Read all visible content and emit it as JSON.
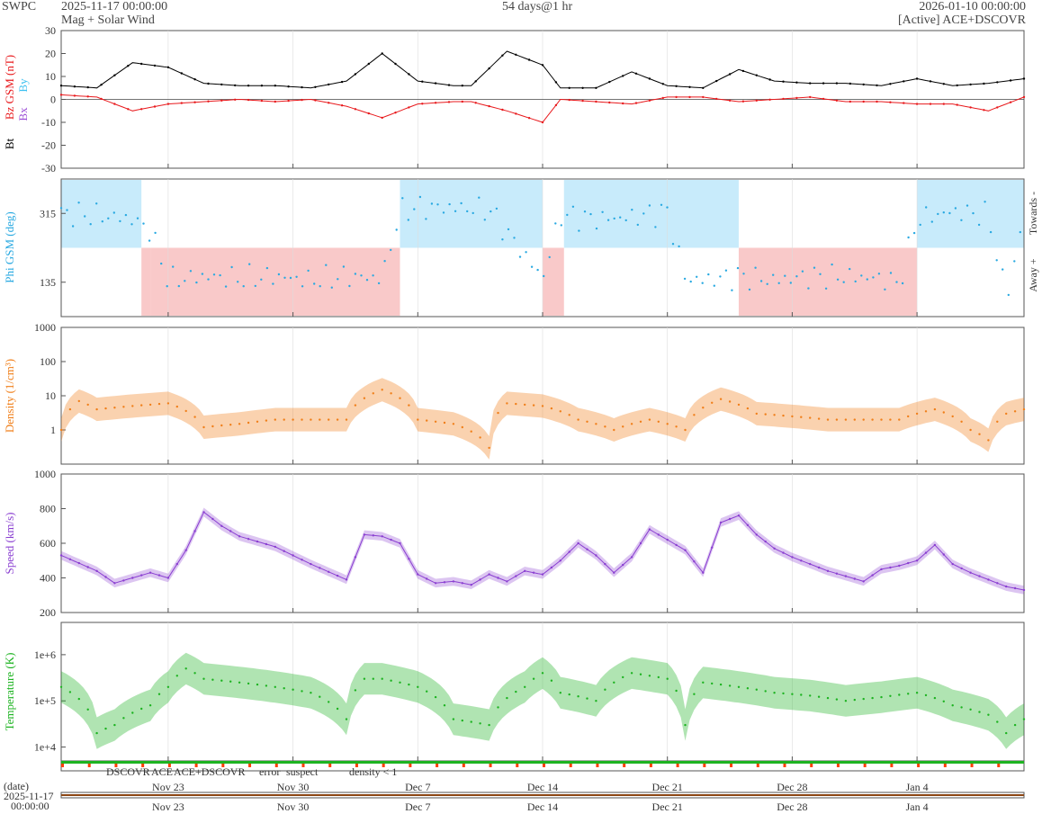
{
  "header": {
    "logo": "SWPC",
    "start": "2025-11-17 00:00:00",
    "subtitle": "Mag + Solar Wind",
    "span": "54 days@1 hr",
    "end": "2026-01-10 00:00:00",
    "source": "[Active] ACE+DSCOVR"
  },
  "x_labels": [
    "Nov 23",
    "Nov 30",
    "Dec 7",
    "Dec 14",
    "Dec 21",
    "Dec 28",
    "Jan 4"
  ],
  "footer": {
    "date_label": "(date)",
    "date_start": "2025-11-17",
    "time_start": "00:00:00"
  },
  "legend": {
    "dscovr": "DSCOVR",
    "ace": "ACE",
    "ace_dscovr": "ACE+DSCOVR",
    "error": "error",
    "suspect": "suspect",
    "density": "density < 1"
  },
  "colors": {
    "bt": "#000000",
    "bz": "#e8191c",
    "by": "#3ec1f0",
    "bx": "#9b4dd6",
    "phi": "#29a9e1",
    "toward_fill": "#c8ebfb",
    "away_fill": "#f9c9c9",
    "density": "#f07f1a",
    "speed": "#8a3fd1",
    "temperature": "#1db321"
  },
  "chart_data": [
    {
      "type": "line",
      "name": "Mag",
      "ylabel_parts": [
        "Bt",
        "Bz GSM (nT)",
        "Bx",
        "By"
      ],
      "ylim": [
        -30,
        30
      ],
      "yticks": [
        30,
        20,
        10,
        0,
        -10,
        -20,
        -30
      ],
      "x_unit": "days since 2025-11-17",
      "series": [
        {
          "name": "Bt",
          "x": [
            0,
            2,
            4,
            6,
            8,
            10,
            12,
            14,
            16,
            18,
            20,
            22,
            23,
            25,
            27,
            28,
            30,
            32,
            34,
            36,
            38,
            40,
            42,
            44,
            46,
            48,
            50,
            52,
            54
          ],
          "y": [
            6,
            5,
            16,
            14,
            7,
            6,
            6,
            5,
            8,
            20,
            8,
            6,
            6,
            21,
            15,
            5,
            5,
            12,
            6,
            5,
            13,
            8,
            7,
            7,
            6,
            9,
            6,
            7,
            9
          ]
        },
        {
          "name": "Bz GSM",
          "x": [
            0,
            2,
            4,
            6,
            8,
            10,
            12,
            14,
            16,
            18,
            20,
            22,
            23,
            25,
            27,
            28,
            30,
            32,
            34,
            36,
            38,
            40,
            42,
            44,
            46,
            48,
            50,
            52,
            54
          ],
          "y": [
            2,
            1,
            -5,
            -2,
            -1,
            0,
            -1,
            0,
            -3,
            -8,
            -2,
            -1,
            -1,
            -5,
            -10,
            0,
            -1,
            -2,
            1,
            1,
            -1,
            0,
            1,
            -1,
            -1,
            -2,
            -2,
            -5,
            1
          ]
        }
      ]
    },
    {
      "type": "scatter",
      "name": "Phi GSM",
      "ylabel": "Phi GSM (deg)",
      "yticks": [
        315,
        135
      ],
      "ylim": [
        45,
        405
      ],
      "side_labels": {
        "top": "Towards -",
        "bottom": "Away +"
      },
      "x": [
        0,
        2,
        4,
        5,
        6,
        8,
        10,
        12,
        14,
        16,
        18,
        19,
        20,
        22,
        24,
        27,
        28,
        30,
        32,
        34,
        35,
        36,
        38,
        40,
        42,
        44,
        46,
        47,
        48,
        50,
        52,
        53,
        54
      ],
      "y": [
        315,
        310,
        300,
        270,
        140,
        150,
        145,
        150,
        140,
        150,
        145,
        320,
        330,
        330,
        325,
        145,
        310,
        300,
        305,
        320,
        145,
        140,
        150,
        140,
        150,
        150,
        145,
        130,
        300,
        320,
        310,
        95,
        300
      ]
    },
    {
      "type": "line",
      "name": "Density",
      "ylabel": "Density (1/cm³)",
      "yscale": "log",
      "ylim": [
        0.1,
        1000
      ],
      "yticks": [
        "1000",
        "100",
        "10",
        "1"
      ],
      "x": [
        0,
        1,
        2,
        4,
        6,
        8,
        10,
        12,
        14,
        16,
        18,
        20,
        22,
        24,
        25,
        27,
        29,
        31,
        33,
        35,
        37,
        39,
        41,
        43,
        45,
        47,
        49,
        51,
        52,
        53,
        54
      ],
      "y": [
        1,
        7,
        4,
        5,
        6,
        1.2,
        1.5,
        2,
        2,
        2,
        15,
        2,
        1.5,
        0.3,
        6,
        5,
        2,
        1,
        2,
        1,
        8,
        3,
        2.5,
        2,
        2,
        2,
        4,
        1,
        0.5,
        3,
        4
      ]
    },
    {
      "type": "line",
      "name": "Speed",
      "ylabel": "Speed (km/s)",
      "ylim": [
        200,
        1000
      ],
      "yticks": [
        1000,
        800,
        600,
        400,
        200
      ],
      "x": [
        0,
        2,
        3,
        5,
        6,
        7,
        8,
        9,
        10,
        12,
        14,
        16,
        17,
        18,
        19,
        20,
        21,
        22,
        23,
        24,
        25,
        26,
        27,
        28,
        29,
        30,
        31,
        32,
        33,
        34,
        35,
        36,
        37,
        38,
        39,
        40,
        41,
        42,
        43,
        44,
        45,
        46,
        47,
        48,
        49,
        50,
        51,
        52,
        53,
        54
      ],
      "y": [
        530,
        440,
        370,
        430,
        400,
        560,
        780,
        700,
        640,
        580,
        480,
        390,
        650,
        640,
        600,
        420,
        370,
        380,
        360,
        420,
        380,
        440,
        420,
        500,
        600,
        530,
        430,
        520,
        680,
        620,
        560,
        430,
        720,
        760,
        650,
        570,
        520,
        480,
        440,
        410,
        380,
        450,
        470,
        500,
        590,
        480,
        430,
        390,
        350,
        330
      ]
    },
    {
      "type": "line",
      "name": "Temperature",
      "ylabel": "Temperature (K)",
      "yscale": "log",
      "ylim": [
        5000,
        5000000
      ],
      "yticks": [
        "1e+6",
        "1e+5",
        "1e+4"
      ],
      "x": [
        0,
        2,
        3,
        5,
        6,
        7,
        8,
        10,
        12,
        14,
        16,
        17,
        18,
        20,
        22,
        24,
        26,
        27,
        28,
        30,
        32,
        34,
        35,
        36,
        38,
        40,
        42,
        44,
        46,
        48,
        50,
        52,
        53,
        54
      ],
      "y": [
        200000,
        20000,
        30000,
        80000,
        200000,
        500000,
        300000,
        250000,
        200000,
        150000,
        40000,
        300000,
        300000,
        200000,
        40000,
        30000,
        200000,
        400000,
        150000,
        100000,
        400000,
        300000,
        30000,
        250000,
        200000,
        150000,
        130000,
        100000,
        120000,
        150000,
        80000,
        50000,
        20000,
        40000
      ]
    }
  ]
}
